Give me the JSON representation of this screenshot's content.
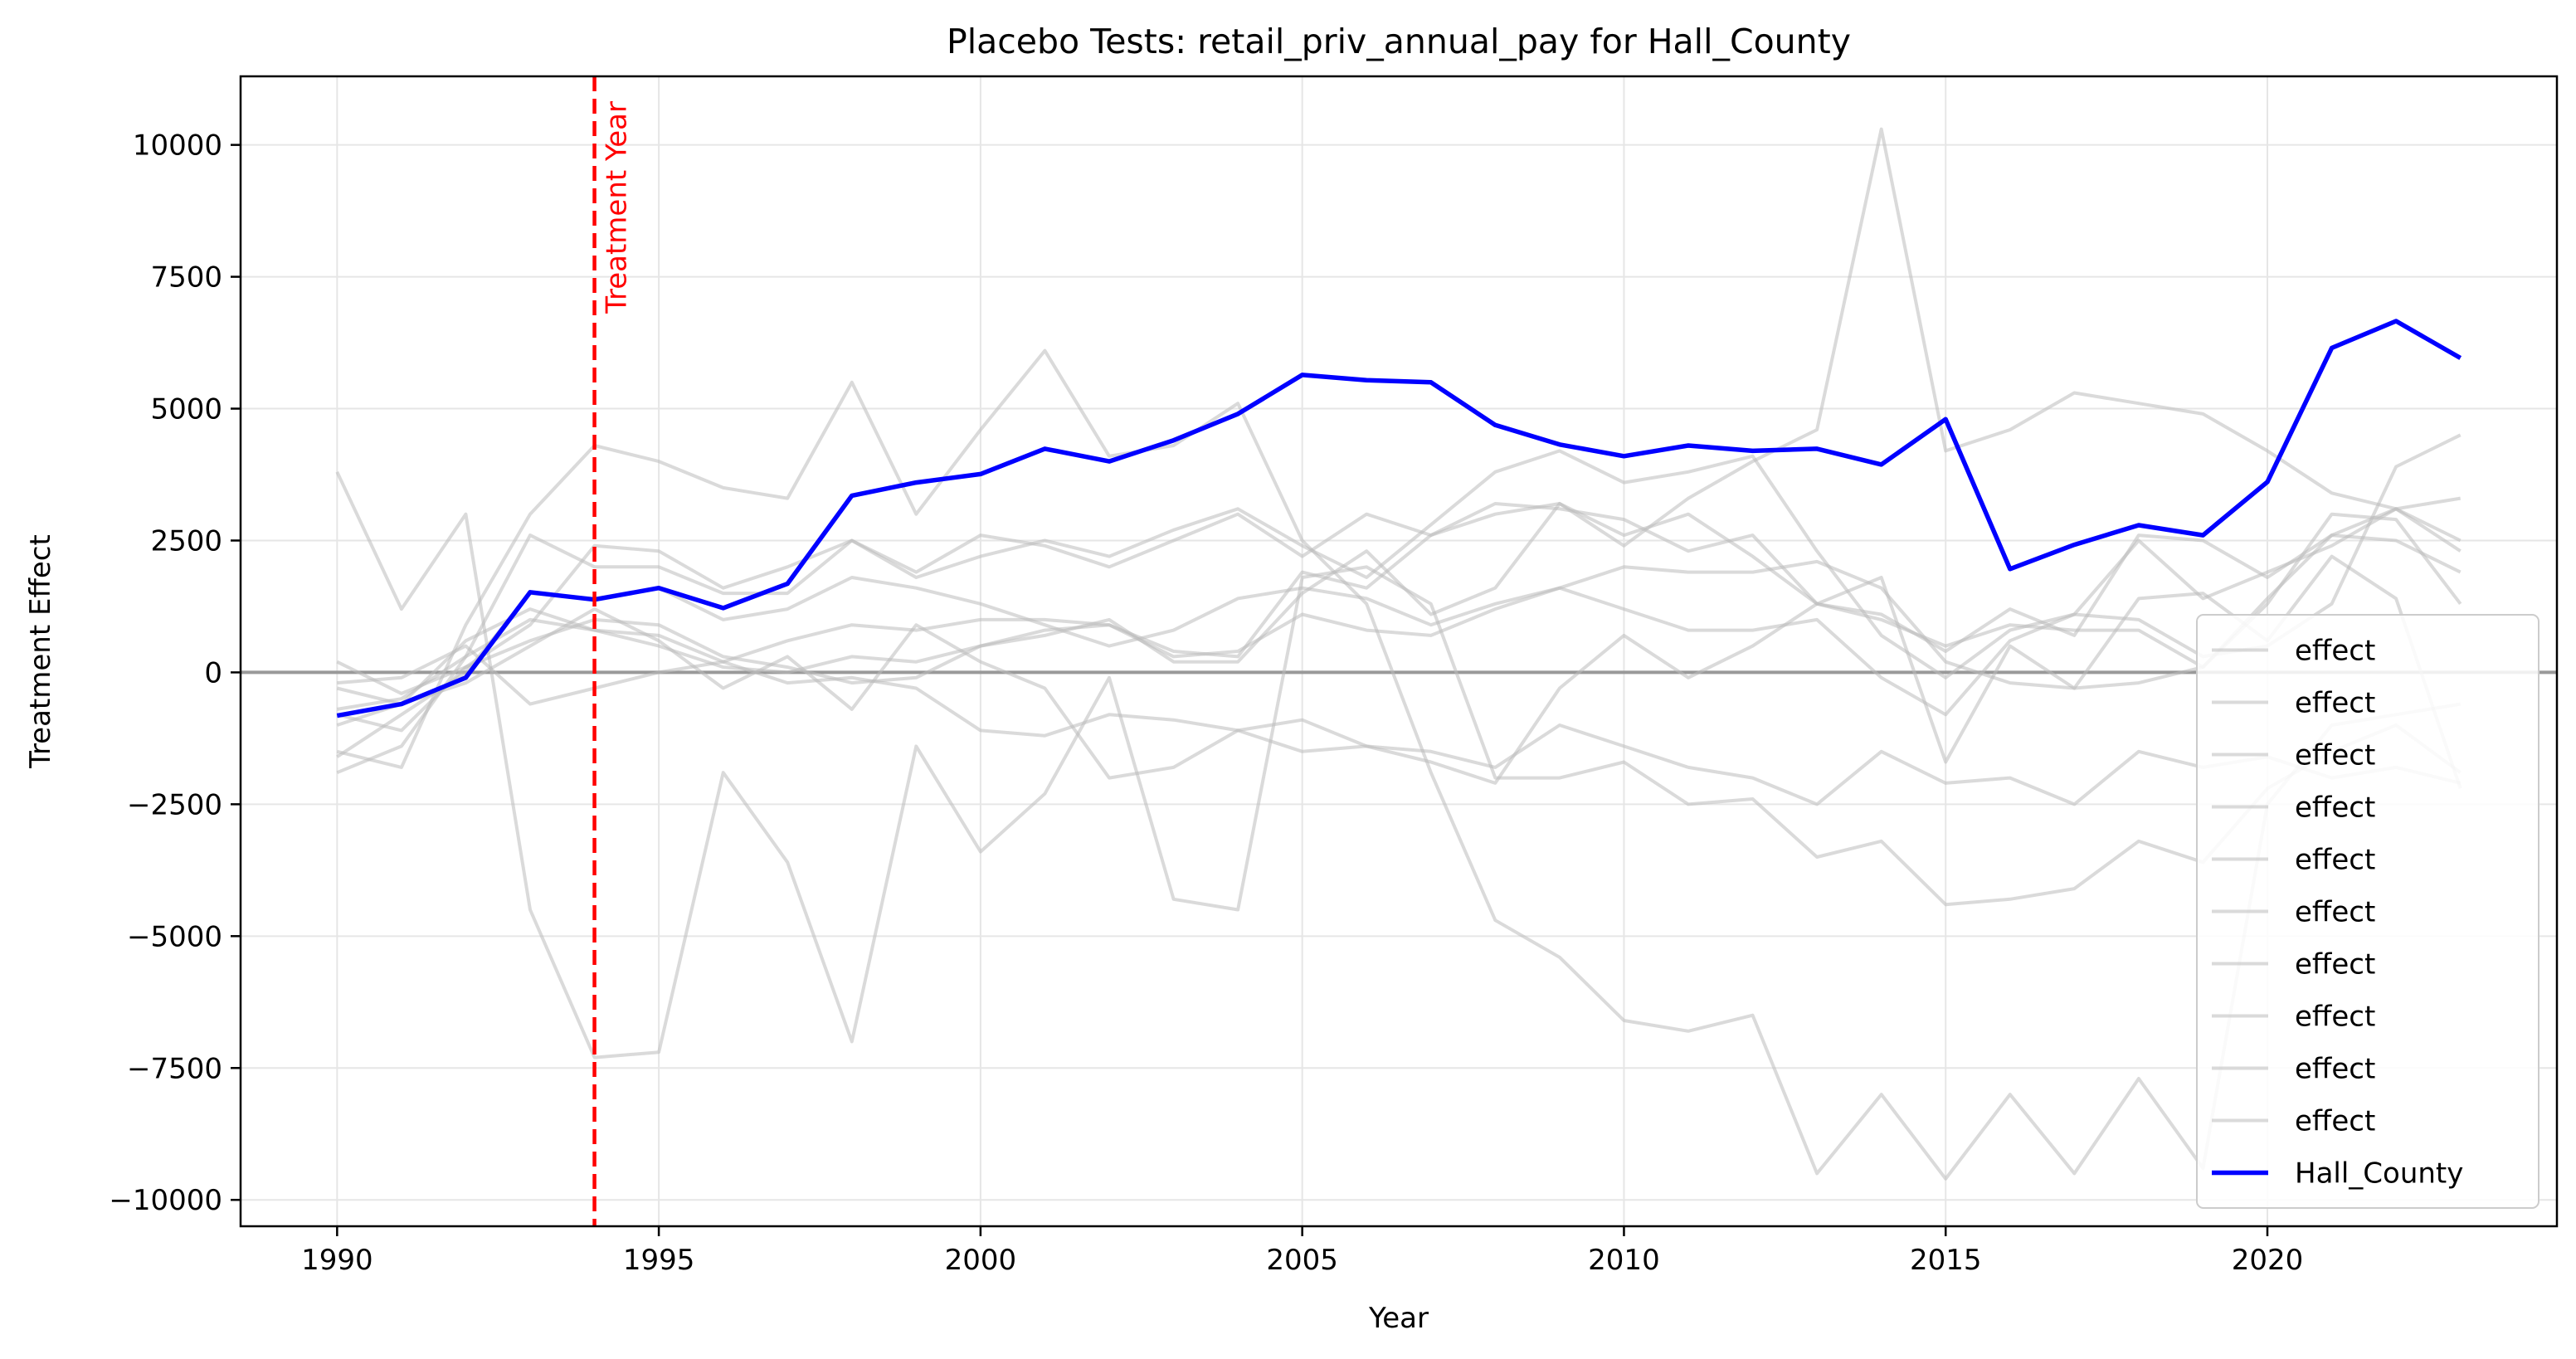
{
  "chart_data": {
    "type": "line",
    "title": "Placebo Tests: retail_priv_annual_pay for Hall_County",
    "xlabel": "Year",
    "ylabel": "Treatment Effect",
    "xlim": [
      1988.5,
      2024.5
    ],
    "ylim": [
      -10500,
      11300
    ],
    "xticks": [
      1990,
      1995,
      2000,
      2005,
      2010,
      2015,
      2020
    ],
    "xtick_labels": [
      "1990",
      "1995",
      "2000",
      "2005",
      "2010",
      "2015",
      "2020"
    ],
    "yticks": [
      -10000,
      -7500,
      -5000,
      -2500,
      0,
      2500,
      5000,
      7500,
      10000
    ],
    "ytick_labels": [
      "−10000",
      "−7500",
      "−5000",
      "−2500",
      "0",
      "2500",
      "5000",
      "7500",
      "10000"
    ],
    "grid": true,
    "legend_position": "bottom-right",
    "annotation": {
      "text": "Treatment Year",
      "x": 1994,
      "color": "#ff0000",
      "style": "dashed"
    },
    "zero_line": 0,
    "x": [
      1990,
      1991,
      1992,
      1993,
      1994,
      1995,
      1996,
      1997,
      1998,
      1999,
      2000,
      2001,
      2002,
      2003,
      2004,
      2005,
      2006,
      2007,
      2008,
      2009,
      2010,
      2011,
      2012,
      2013,
      2014,
      2015,
      2016,
      2017,
      2018,
      2019,
      2020,
      2021,
      2022,
      2023
    ],
    "series": [
      {
        "name": "effect",
        "color": "#bbbbbb",
        "values": [
          3800,
          1200,
          3000,
          -4500,
          -7300,
          -7200,
          -1900,
          -3600,
          -7000,
          -1400,
          -3400,
          -2300,
          -100,
          -4300,
          -4500,
          1800,
          2000,
          1300,
          -2000,
          -2000,
          -1700,
          -2500,
          -2400,
          -3500,
          -3200,
          -4400,
          -4300,
          -4100,
          -3200,
          -3600,
          -2200,
          -1500,
          -1000,
          -1900
        ]
      },
      {
        "name": "effect",
        "color": "#bbbbbb",
        "values": [
          -1500,
          -1800,
          900,
          3000,
          4300,
          4000,
          3500,
          3300,
          5500,
          3000,
          4600,
          6100,
          4100,
          4300,
          5100,
          2500,
          1300,
          -1900,
          -4700,
          -5400,
          -6600,
          -6800,
          -6500,
          -9500,
          -8000,
          -9600,
          -8000,
          -9500,
          -7700,
          -9400,
          -2500,
          -1000,
          -800,
          -600
        ]
      },
      {
        "name": "effect",
        "color": "#bbbbbb",
        "values": [
          -1900,
          -1400,
          300,
          2600,
          2000,
          2000,
          1500,
          1500,
          2500,
          1900,
          2600,
          2400,
          2000,
          2500,
          3000,
          2200,
          3000,
          2600,
          3000,
          3200,
          2600,
          3000,
          2200,
          1300,
          1100,
          400,
          1200,
          700,
          2600,
          2500,
          1800,
          2600,
          2500,
          1900
        ]
      },
      {
        "name": "effect",
        "color": "#bbbbbb",
        "values": [
          -800,
          -1100,
          100,
          900,
          2400,
          2300,
          1600,
          2000,
          2500,
          1800,
          2200,
          2500,
          2200,
          2700,
          3100,
          2400,
          1800,
          2800,
          3800,
          4200,
          3600,
          3800,
          4100,
          2300,
          700,
          -100,
          800,
          1100,
          2500,
          1400,
          1900,
          2400,
          3100,
          2300
        ]
      },
      {
        "name": "effect",
        "color": "#bbbbbb",
        "values": [
          -300,
          -600,
          600,
          1200,
          800,
          700,
          200,
          600,
          900,
          800,
          1000,
          1000,
          900,
          400,
          300,
          1900,
          1600,
          2600,
          3200,
          3100,
          2900,
          2300,
          2600,
          1300,
          1000,
          500,
          900,
          800,
          800,
          100,
          1400,
          2600,
          3100,
          3300
        ]
      },
      {
        "name": "effect",
        "color": "#bbbbbb",
        "values": [
          200,
          -400,
          100,
          600,
          1000,
          900,
          300,
          100,
          -200,
          -100,
          500,
          700,
          1000,
          200,
          200,
          1500,
          2300,
          1100,
          1600,
          3200,
          2400,
          3300,
          4000,
          4600,
          10300,
          4200,
          4600,
          5300,
          5100,
          4900,
          4200,
          3400,
          3100,
          2500
        ]
      },
      {
        "name": "effect",
        "color": "#bbbbbb",
        "values": [
          -1000,
          -600,
          -200,
          500,
          1200,
          600,
          -300,
          300,
          -700,
          900,
          200,
          -300,
          -2000,
          -1800,
          -1100,
          -1500,
          -1400,
          -1700,
          -2100,
          -300,
          700,
          -100,
          500,
          1300,
          1800,
          -1700,
          500,
          -300,
          1400,
          1500,
          600,
          2200,
          1400,
          -2200
        ]
      },
      {
        "name": "effect",
        "color": "#bbbbbb",
        "values": [
          -1600,
          -800,
          0,
          1500,
          1400,
          1600,
          1000,
          1200,
          1800,
          1600,
          1300,
          900,
          500,
          800,
          1400,
          1600,
          1400,
          900,
          1300,
          1600,
          2000,
          1900,
          1900,
          2100,
          1600,
          200,
          -200,
          -300,
          -200,
          100,
          1300,
          3000,
          2900,
          1300
        ]
      },
      {
        "name": "effect",
        "color": "#bbbbbb",
        "values": [
          -700,
          -500,
          300,
          1000,
          800,
          500,
          100,
          0,
          300,
          200,
          500,
          800,
          900,
          300,
          400,
          1100,
          800,
          700,
          1200,
          1600,
          1200,
          800,
          800,
          1000,
          -100,
          -800,
          600,
          1100,
          1000,
          300,
          500,
          1300,
          3900,
          4500
        ]
      },
      {
        "name": "effect",
        "color": "#bbbbbb",
        "values": [
          -200,
          -100,
          500,
          -600,
          -300,
          0,
          200,
          -200,
          -100,
          -300,
          -1100,
          -1200,
          -800,
          -900,
          -1100,
          -900,
          -1400,
          -1500,
          -1800,
          -1000,
          -1400,
          -1800,
          -2000,
          -2500,
          -1500,
          -2100,
          -2000,
          -2500,
          -1500,
          -1800,
          -1600,
          -2000,
          -1800,
          -2100
        ]
      },
      {
        "name": "Hall_County",
        "color": "#0000ff",
        "values": [
          -820,
          -600,
          -100,
          1520,
          1380,
          1600,
          1220,
          1680,
          3350,
          3600,
          3760,
          4240,
          4000,
          4400,
          4900,
          5640,
          5540,
          5500,
          4690,
          4320,
          4100,
          4300,
          4200,
          4240,
          3940,
          4800,
          1960,
          2420,
          2790,
          2600,
          3610,
          6150,
          6660,
          5960
        ]
      }
    ]
  }
}
